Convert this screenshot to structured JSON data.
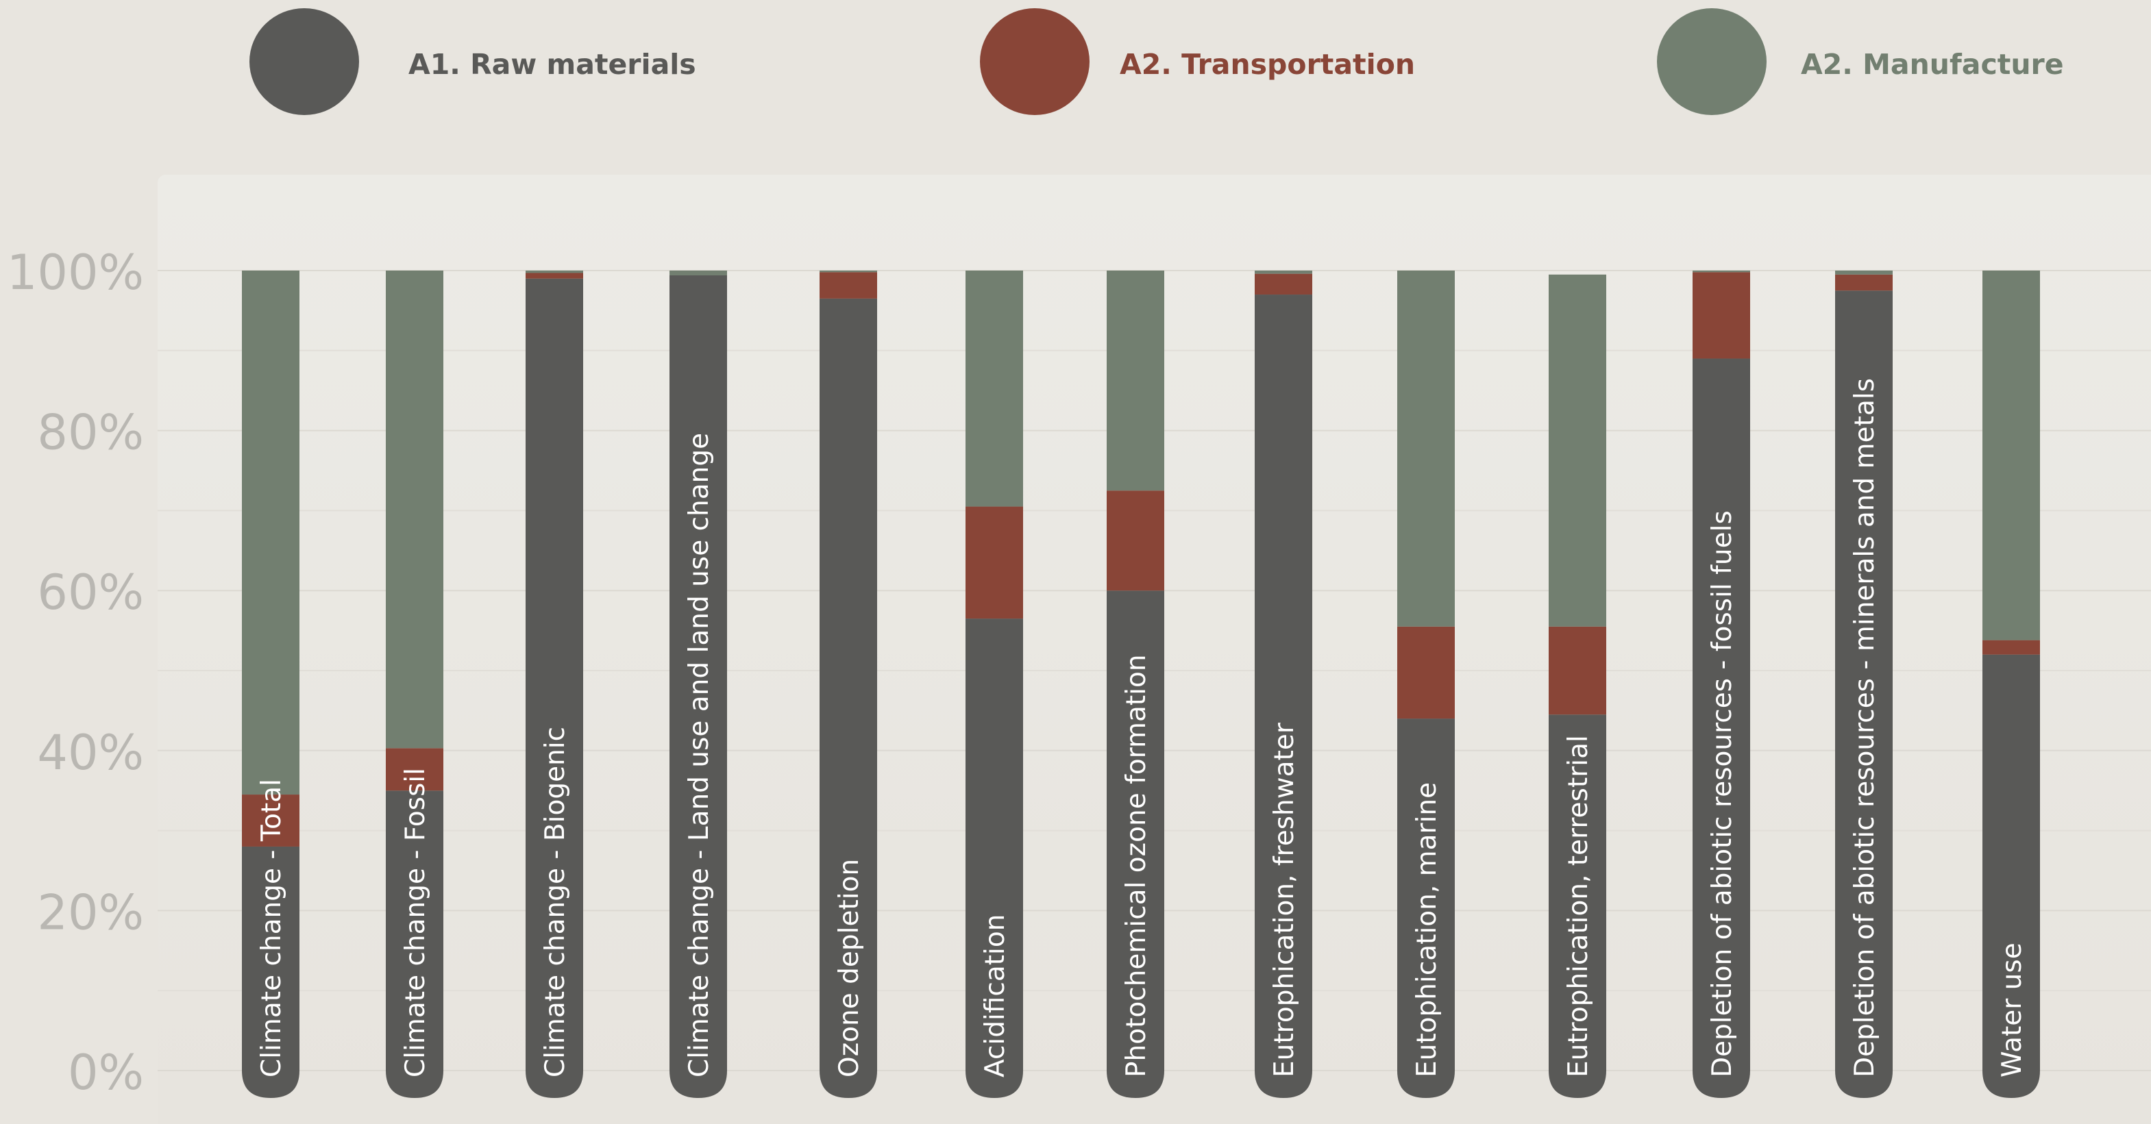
{
  "legend": [
    {
      "label": "A1. Raw materials",
      "color": "#595957"
    },
    {
      "label": "A2. Transportation",
      "color": "#894537"
    },
    {
      "label": "A2. Manufacture",
      "color": "#727f70"
    }
  ],
  "chart_data": {
    "type": "bar",
    "stacked": true,
    "orientation": "vertical",
    "categories": [
      "Climate change - Total",
      "Climate change - Fossil",
      "Climate change - Biogenic",
      "Climate change - Land use and land use change",
      "Ozone depletion",
      "Acidification",
      "Photochemical ozone formation",
      "Eutrophication, freshwater",
      "Eutophication, marine",
      "Eutrophication, terrestrial",
      "Depletion of abiotic resources - fossil fuels",
      "Depletion of abiotic resources - minerals and metals",
      "Water use"
    ],
    "series": [
      {
        "name": "A1. Raw materials",
        "color": "#595957",
        "values": [
          28,
          35,
          99,
          99.4,
          96.5,
          56.5,
          60,
          97,
          44,
          44.5,
          89,
          97.5,
          52
        ]
      },
      {
        "name": "A2. Transportation",
        "color": "#894537",
        "values": [
          6.5,
          5.3,
          0.7,
          0,
          3.3,
          14,
          12.5,
          2.6,
          11.5,
          11,
          10.8,
          2,
          1.8
        ]
      },
      {
        "name": "A2. Manufacture",
        "color": "#727f70",
        "values": [
          65.5,
          59.7,
          0.3,
          0.6,
          0.2,
          29.5,
          27.5,
          0.4,
          44.5,
          44,
          0.2,
          0.5,
          46.2
        ]
      }
    ],
    "ylim": [
      0,
      100
    ],
    "yticks": [
      "0%",
      "20%",
      "40%",
      "60%",
      "80%",
      "100%"
    ],
    "grid": true,
    "legend_position": "top"
  }
}
